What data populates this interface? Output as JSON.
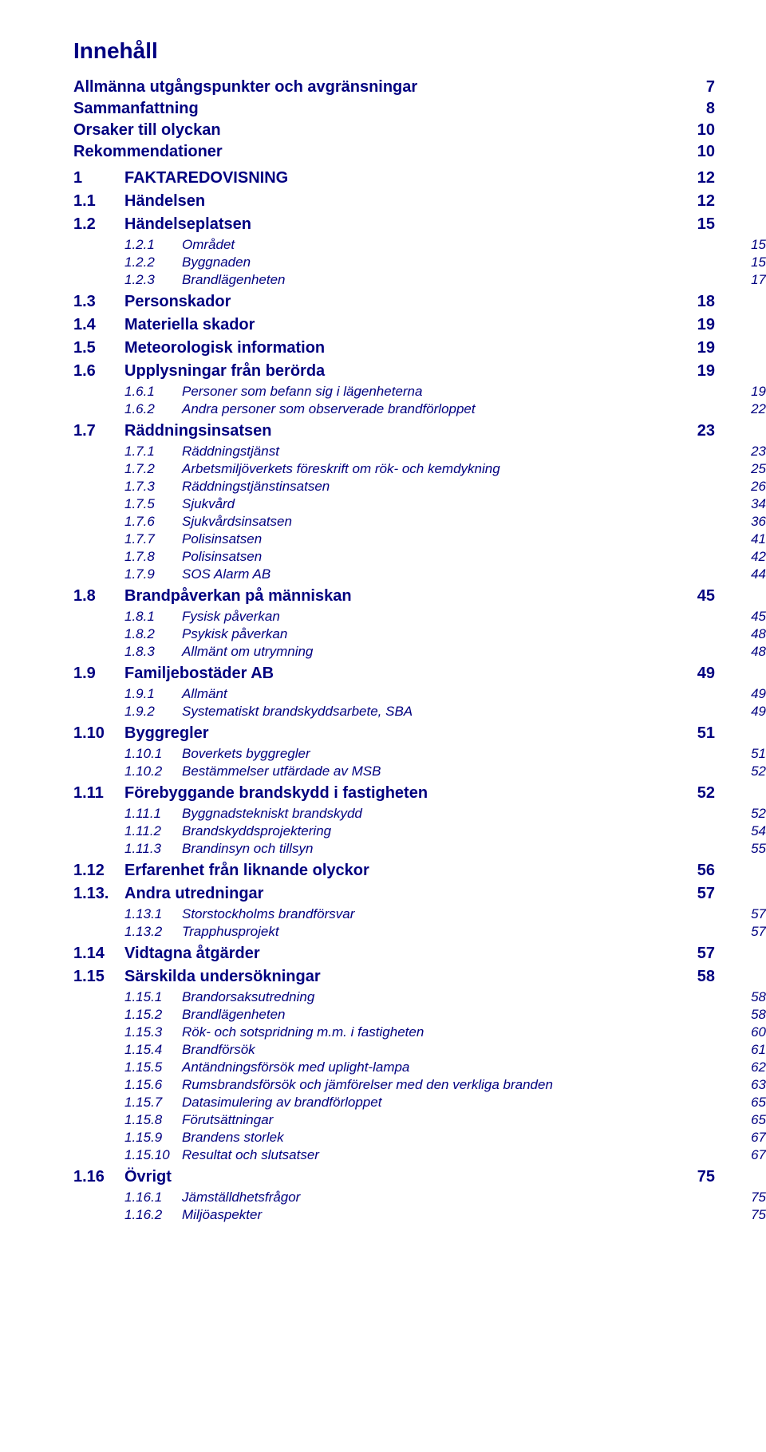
{
  "title": "Innehåll",
  "colors": {
    "text": "#000080",
    "background": "#ffffff"
  },
  "typography": {
    "family": "Arial",
    "h1_size": 28,
    "l1_size": 20,
    "l2_size": 20,
    "l3_size": 17
  },
  "entries": [
    {
      "level": "l1",
      "num": "",
      "label": "Allmänna utgångspunkter och avgränsningar",
      "page": "7"
    },
    {
      "level": "l1",
      "num": "",
      "label": "Sammanfattning",
      "page": "8"
    },
    {
      "level": "l1",
      "num": "",
      "label": "Orsaker till olyckan",
      "page": "10"
    },
    {
      "level": "l1",
      "num": "",
      "label": "Rekommendationer",
      "page": "10"
    },
    {
      "level": "lc",
      "num": "1",
      "label": "FAKTAREDOVISNING",
      "page": "12"
    },
    {
      "level": "l2",
      "num": "1.1",
      "label": "Händelsen",
      "page": "12"
    },
    {
      "level": "l2",
      "num": "1.2",
      "label": "Händelseplatsen",
      "page": "15"
    },
    {
      "level": "l3",
      "num": "1.2.1",
      "label": "Området",
      "page": "15"
    },
    {
      "level": "l3",
      "num": "1.2.2",
      "label": "Byggnaden",
      "page": "15"
    },
    {
      "level": "l3",
      "num": "1.2.3",
      "label": "Brandlägenheten",
      "page": "17"
    },
    {
      "level": "l2",
      "num": "1.3",
      "label": "Personskador",
      "page": "18"
    },
    {
      "level": "l2",
      "num": "1.4",
      "label": "Materiella skador",
      "page": "19"
    },
    {
      "level": "l2",
      "num": "1.5",
      "label": "Meteorologisk information",
      "page": "19"
    },
    {
      "level": "l2",
      "num": "1.6",
      "label": "Upplysningar från berörda",
      "page": "19"
    },
    {
      "level": "l3",
      "num": "1.6.1",
      "label": "Personer som befann sig i lägenheterna",
      "page": "19"
    },
    {
      "level": "l3",
      "num": "1.6.2",
      "label": "Andra personer som observerade brandförloppet",
      "page": "22"
    },
    {
      "level": "l2",
      "num": "1.7",
      "label": "Räddningsinsatsen",
      "page": "23"
    },
    {
      "level": "l3",
      "num": "1.7.1",
      "label": "Räddningstjänst",
      "page": "23"
    },
    {
      "level": "l3",
      "num": "1.7.2",
      "label": "Arbetsmiljöverkets föreskrift om rök- och kemdykning",
      "page": "25"
    },
    {
      "level": "l3",
      "num": "1.7.3",
      "label": "Räddningstjänstinsatsen",
      "page": "26"
    },
    {
      "level": "l3",
      "num": "1.7.5",
      "label": "Sjukvård",
      "page": "34"
    },
    {
      "level": "l3",
      "num": "1.7.6",
      "label": "Sjukvårdsinsatsen",
      "page": "36"
    },
    {
      "level": "l3",
      "num": "1.7.7",
      "label": "Polisinsatsen",
      "page": "41"
    },
    {
      "level": "l3",
      "num": "1.7.8",
      "label": "Polisinsatsen",
      "page": "42"
    },
    {
      "level": "l3",
      "num": "1.7.9",
      "label": "SOS Alarm AB",
      "page": "44"
    },
    {
      "level": "l2",
      "num": "1.8",
      "label": "Brandpåverkan på människan",
      "page": "45"
    },
    {
      "level": "l3",
      "num": "1.8.1",
      "label": "Fysisk påverkan",
      "page": "45"
    },
    {
      "level": "l3",
      "num": "1.8.2",
      "label": "Psykisk påverkan",
      "page": "48"
    },
    {
      "level": "l3",
      "num": "1.8.3",
      "label": "Allmänt om utrymning",
      "page": "48"
    },
    {
      "level": "l2",
      "num": "1.9",
      "label": "Familjebostäder AB",
      "page": "49"
    },
    {
      "level": "l3",
      "num": "1.9.1",
      "label": "Allmänt",
      "page": "49"
    },
    {
      "level": "l3",
      "num": "1.9.2",
      "label": "Systematiskt brandskyddsarbete, SBA",
      "page": "49"
    },
    {
      "level": "l2",
      "num": "1.10",
      "label": "Byggregler",
      "page": "51"
    },
    {
      "level": "l3",
      "num": "1.10.1",
      "label": "Boverkets byggregler",
      "page": "51"
    },
    {
      "level": "l3",
      "num": "1.10.2",
      "label": "Bestämmelser utfärdade av MSB",
      "page": "52"
    },
    {
      "level": "l2",
      "num": "1.11",
      "label": "Förebyggande brandskydd i fastigheten",
      "page": "52"
    },
    {
      "level": "l3",
      "num": "1.11.1",
      "label": "Byggnadstekniskt brandskydd",
      "page": "52"
    },
    {
      "level": "l3",
      "num": "1.11.2",
      "label": "Brandskyddsprojektering",
      "page": "54"
    },
    {
      "level": "l3",
      "num": "1.11.3",
      "label": "Brandinsyn och tillsyn",
      "page": "55"
    },
    {
      "level": "l2",
      "num": "1.12",
      "label": "Erfarenhet från liknande olyckor",
      "page": "56"
    },
    {
      "level": "l2",
      "num": "1.13.",
      "label": "Andra utredningar",
      "page": "57"
    },
    {
      "level": "l3",
      "num": "1.13.1",
      "label": "Storstockholms brandförsvar",
      "page": "57"
    },
    {
      "level": "l3",
      "num": "1.13.2",
      "label": "Trapphusprojekt",
      "page": "57"
    },
    {
      "level": "l2",
      "num": "1.14",
      "label": "Vidtagna åtgärder",
      "page": "57"
    },
    {
      "level": "l2",
      "num": "1.15",
      "label": "Särskilda undersökningar",
      "page": "58"
    },
    {
      "level": "l3",
      "num": "1.15.1",
      "label": "Brandorsaksutredning",
      "page": "58"
    },
    {
      "level": "l3",
      "num": "1.15.2",
      "label": "Brandlägenheten",
      "page": "58"
    },
    {
      "level": "l3",
      "num": "1.15.3",
      "label": "Rök- och sotspridning m.m. i fastigheten",
      "page": "60"
    },
    {
      "level": "l3",
      "num": "1.15.4",
      "label": "Brandförsök",
      "page": "61"
    },
    {
      "level": "l3",
      "num": "1.15.5",
      "label": "Antändningsförsök med uplight-lampa",
      "page": "62"
    },
    {
      "level": "l3",
      "num": "1.15.6",
      "label": "Rumsbrandsförsök och jämförelser med den verkliga branden",
      "page": "63"
    },
    {
      "level": "l3",
      "num": "1.15.7",
      "label": "Datasimulering av brandförloppet",
      "page": "65"
    },
    {
      "level": "l3",
      "num": "1.15.8",
      "label": "Förutsättningar",
      "page": "65"
    },
    {
      "level": "l3",
      "num": "1.15.9",
      "label": "Brandens storlek",
      "page": "67"
    },
    {
      "level": "l3",
      "num": "1.15.10",
      "label": "Resultat och slutsatser",
      "page": "67"
    },
    {
      "level": "l2",
      "num": "1.16",
      "label": "Övrigt",
      "page": "75"
    },
    {
      "level": "l3",
      "num": "1.16.1",
      "label": "Jämställdhetsfrågor",
      "page": "75"
    },
    {
      "level": "l3",
      "num": "1.16.2",
      "label": "Miljöaspekter",
      "page": "75"
    }
  ]
}
